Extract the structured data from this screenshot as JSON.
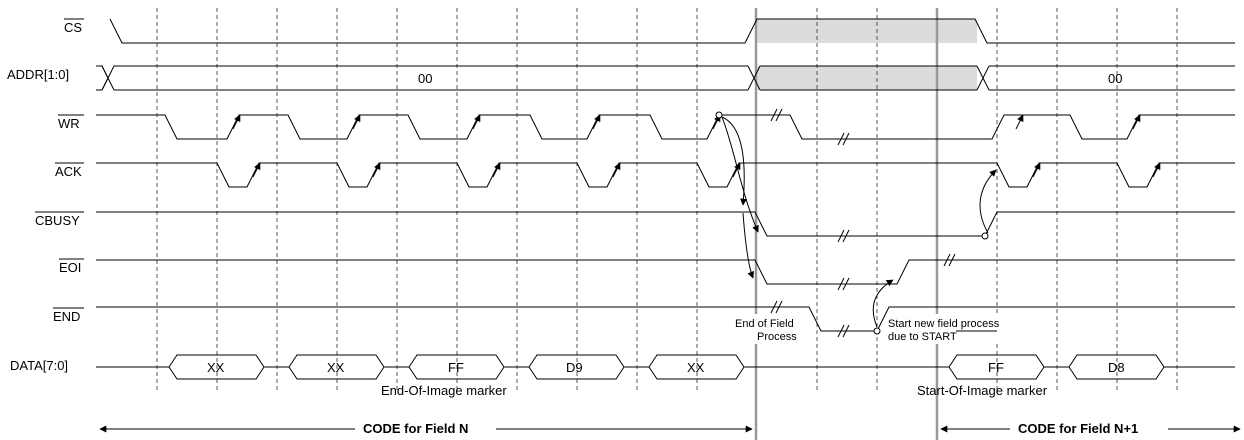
{
  "signals": {
    "cs": "CS",
    "addr": "ADDR[1:0]",
    "wr": "WR",
    "ack": "ACK",
    "cbusy": "CBUSY",
    "eoi": "EOI",
    "end": "END",
    "data": "DATA[7:0]"
  },
  "addr_values": {
    "left": "00",
    "right": "00"
  },
  "data_values": [
    "XX",
    "XX",
    "FF",
    "D9",
    "XX",
    "FF",
    "D8"
  ],
  "annotations": {
    "end_of_field_line1": "End of Field",
    "end_of_field_line2": "Process",
    "start_new_line1": "Start new field process",
    "start_new_line2": "due to START",
    "eoi_marker": "End-Of-Image marker",
    "soi_marker": "Start-Of-Image marker"
  },
  "footer": {
    "field_n": "CODE for Field N",
    "field_n1": "CODE for Field N+1"
  },
  "colors": {
    "shade": "#dcdcdc",
    "marker_line": "#999999",
    "grid": "#555555"
  }
}
